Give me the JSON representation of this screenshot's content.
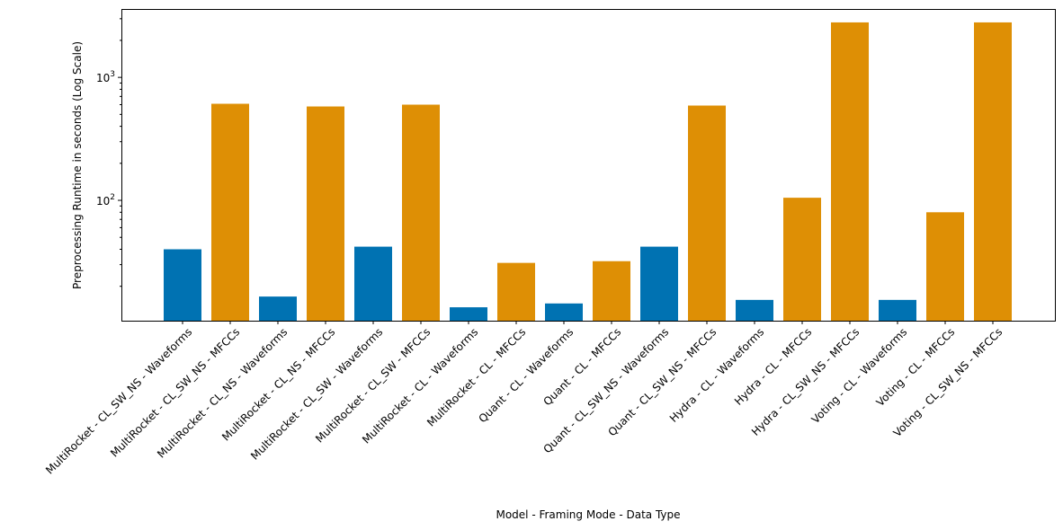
{
  "chart_data": {
    "type": "bar",
    "title": "",
    "xlabel": "Model - Framing Mode - Data Type",
    "ylabel": "Preprocessing Runtime in seconds (Log Scale)",
    "yscale": "log",
    "ylim": [
      10.5,
      3600
    ],
    "yticks": [
      {
        "value": 100,
        "base": "10",
        "exp": "2"
      },
      {
        "value": 1000,
        "base": "10",
        "exp": "3"
      }
    ],
    "grid": false,
    "colors": {
      "Waveforms": "#0072b2",
      "MFCCs": "#de8f05"
    },
    "categories": [
      "MultiRocket - CL_SW_NS - Waveforms",
      "MultiRocket - CL_SW_NS - MFCCs",
      "MultiRocket - CL_NS - Waveforms",
      "MultiRocket - CL_NS - MFCCs",
      "MultiRocket - CL_SW - Waveforms",
      "MultiRocket - CL_SW - MFCCs",
      "MultiRocket - CL - Waveforms",
      "MultiRocket - CL - MFCCs",
      "Quant - CL - Waveforms",
      "Quant - CL - MFCCs",
      "Quant - CL_SW_NS - Waveforms",
      "Quant - CL_SW_NS - MFCCs",
      "Hydra - CL - Waveforms",
      "Hydra - CL - MFCCs",
      "Hydra - CL_SW_NS - MFCCs",
      "Voting - CL - Waveforms",
      "Voting - CL - MFCCs",
      "Voting - CL_SW_NS - MFCCs"
    ],
    "data_types": [
      "Waveforms",
      "MFCCs",
      "Waveforms",
      "MFCCs",
      "Waveforms",
      "MFCCs",
      "Waveforms",
      "MFCCs",
      "Waveforms",
      "MFCCs",
      "Waveforms",
      "MFCCs",
      "Waveforms",
      "MFCCs",
      "MFCCs",
      "Waveforms",
      "MFCCs",
      "MFCCs"
    ],
    "values": [
      40,
      610,
      16.5,
      580,
      42,
      600,
      13.5,
      31,
      14.5,
      32,
      42,
      590,
      15.5,
      105,
      2800,
      15.5,
      80,
      2800
    ]
  }
}
